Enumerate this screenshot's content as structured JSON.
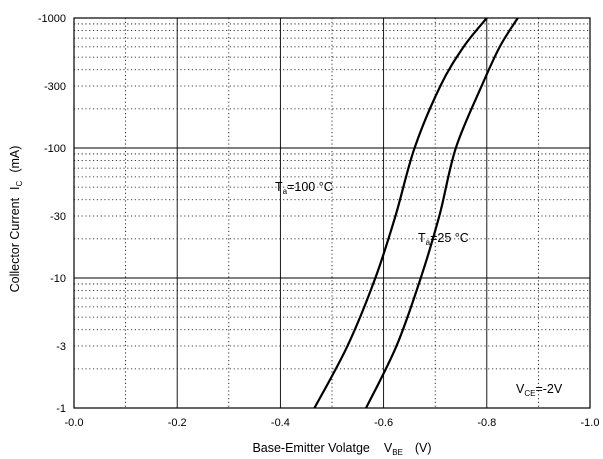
{
  "chart_data": {
    "type": "line",
    "xlabel": {
      "main": "Base-Emitter Volatge",
      "symbol": "V",
      "subscript": "BE",
      "unit": "(V)"
    },
    "ylabel": {
      "main": "Collector Current",
      "symbol": "I",
      "subscript": "C",
      "unit": "(mA)"
    },
    "xlim": [
      0,
      -1.0
    ],
    "ylim": [
      -1,
      -1000
    ],
    "yscale": "log",
    "x_ticks": [
      "-0.0",
      "-0.2",
      "-0.4",
      "-0.6",
      "-0.8",
      "-1.0"
    ],
    "y_ticks": [
      "-1",
      "-3",
      "-10",
      "-30",
      "-100",
      "-300",
      "-1000"
    ],
    "grid": true,
    "annotations": [
      {
        "symbol": "V",
        "subscript": "CE",
        "value": "=-2V"
      }
    ],
    "series": [
      {
        "name_symbol": "T",
        "name_subscript": "a",
        "name_value": "=100 °C",
        "x": [
          -0.466,
          -0.53,
          -0.584,
          -0.623,
          -0.66,
          -0.71,
          -0.755,
          -0.8
        ],
        "y": [
          -1,
          -3,
          -10,
          -30,
          -100,
          -300,
          -600,
          -1000
        ]
      },
      {
        "name_symbol": "T",
        "name_subscript": "a",
        "name_value": "=25 °C",
        "x": [
          -0.566,
          -0.625,
          -0.672,
          -0.708,
          -0.74,
          -0.79,
          -0.825,
          -0.86
        ],
        "y": [
          -1,
          -3,
          -10,
          -30,
          -100,
          -300,
          -600,
          -1000
        ]
      }
    ]
  }
}
